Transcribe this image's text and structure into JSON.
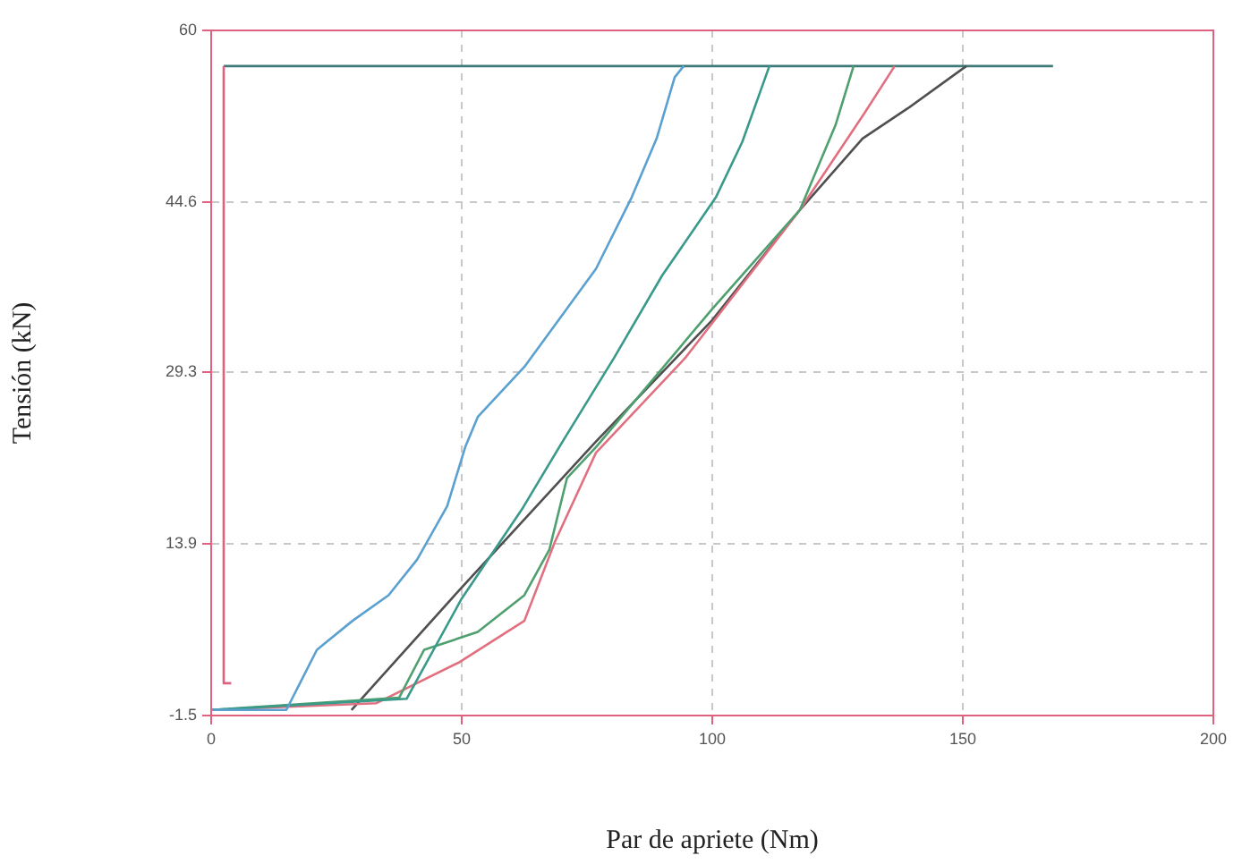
{
  "chart_data": {
    "type": "line",
    "xlabel": "Par de apriete (Nm)",
    "ylabel": "Tensión (kN)",
    "xlim": [
      0,
      200
    ],
    "xticks": [
      0,
      50,
      100,
      150,
      200
    ],
    "ylim": [
      -1.5,
      60
    ],
    "yticks": [
      -1.5,
      13.9,
      29.3,
      44.6,
      60
    ],
    "grid": true,
    "marker": "none",
    "series": [
      {
        "color": "#e06080",
        "x": [
          4,
          2.5,
          2.5
        ],
        "values": [
          1.4,
          1.4,
          56.8
        ]
      },
      {
        "color": "#5aa0d0",
        "x": [
          0,
          15,
          21.1,
          28.2,
          35.4,
          41.1,
          47.1,
          50.7,
          53.2,
          62.5,
          76.8,
          83.9,
          88.9,
          92.5,
          94.3
        ],
        "values": [
          -1.0,
          -1.0,
          4.4,
          7.0,
          9.3,
          12.5,
          17.3,
          22.6,
          25.3,
          29.8,
          38.6,
          45.0,
          50.3,
          55.8,
          56.8
        ]
      },
      {
        "color": "#3a9a8a",
        "x": [
          0,
          39,
          50,
          62,
          70,
          80.4,
          90,
          100.7,
          106,
          111.4
        ],
        "values": [
          -1.0,
          0,
          9,
          17,
          23,
          30.6,
          38,
          45,
          50,
          56.8
        ]
      },
      {
        "color": "#4f9f6f",
        "x": [
          0,
          37.5,
          42.5,
          53.2,
          62.5,
          67.5,
          71,
          76.8,
          100,
          117.5,
          124.6,
          128.2
        ],
        "values": [
          -1.0,
          0.1,
          4.4,
          6.0,
          9.3,
          13.4,
          19.8,
          22.6,
          35,
          43.9,
          51.5,
          56.8
        ]
      },
      {
        "color": "#e07080",
        "x": [
          0,
          32.9,
          49.6,
          62.5,
          68.6,
          76.8,
          94.6,
          117.5,
          130.4,
          136.4
        ],
        "values": [
          -1.0,
          -0.4,
          3.3,
          7.0,
          14.1,
          22.1,
          30.6,
          43.9,
          52.6,
          56.8
        ]
      },
      {
        "color": "#505050",
        "x": [
          28,
          50,
          76.8,
          100,
          117.5,
          130,
          139,
          150.7
        ],
        "values": [
          -1.0,
          10,
          23.1,
          34,
          43.9,
          50.3,
          53,
          56.8
        ]
      },
      {
        "color": "#3d7a78",
        "x": [
          2.5,
          168
        ],
        "values": [
          56.8,
          56.8
        ]
      }
    ]
  }
}
